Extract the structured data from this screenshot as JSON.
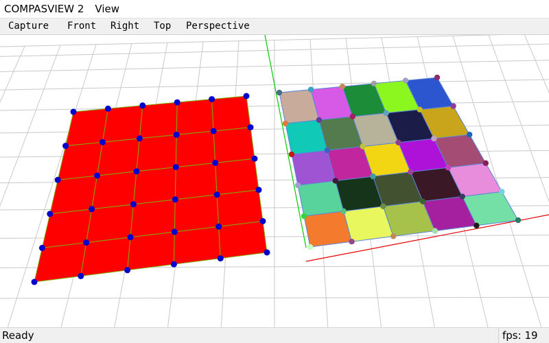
{
  "window": {
    "title": "COMPASVIEW 2",
    "menu": [
      "View"
    ]
  },
  "toolbar": {
    "buttons": [
      "Capture",
      "Front",
      "Right",
      "Top",
      "Perspective"
    ]
  },
  "status": {
    "message": "Ready",
    "fps_label": "fps:",
    "fps_value": "19"
  },
  "scene": {
    "grid_color": "#c9c9c9",
    "axis_x_color": "#e60000",
    "axis_y_color": "#00cc00",
    "left_mesh": {
      "face_color": "#ff0000",
      "edge_color": "#7fa800",
      "vertex_color": "#0000cc",
      "rows": 5,
      "cols": 5
    },
    "right_mesh": {
      "rows": 5,
      "cols": 5,
      "edge_color": "#5a86d6",
      "face_colors": [
        [
          "#f47a2e",
          "#e8f75e",
          "#a6c24a",
          "#a4209f",
          "#74e0a6"
        ],
        [
          "#58d39c",
          "#163419",
          "#425130",
          "#3a1826",
          "#e78ddb"
        ],
        [
          "#9f55d3",
          "#c1269f",
          "#f2d614",
          "#ae11d8",
          "#a54c75"
        ],
        [
          "#11c9b7",
          "#547b4e",
          "#b7b39b",
          "#1c1c48",
          "#c9a51c"
        ],
        [
          "#c9ab9b",
          "#d65ae6",
          "#1c8c39",
          "#8cf71e",
          "#2c56cf"
        ]
      ],
      "vertex_colors": [
        [
          "#c0ffc0",
          "#8d4a8c",
          "#c08a5a",
          "#a0e0b0",
          "#1c1c1c",
          "#2c7a6c"
        ],
        [
          "#3cd03c",
          "#58c084",
          "#6e8c48",
          "#3c6432",
          "#3c3c64",
          "#7ad0e0"
        ],
        [
          "#a0a0d0",
          "#3c1c3c",
          "#40a0a0",
          "#a040a0",
          "#c040c0",
          "#8a1c5a"
        ],
        [
          "#c01c1c",
          "#3c64c0",
          "#c0c040",
          "#8a408a",
          "#c0a0c0",
          "#1c64c0"
        ],
        [
          "#e07a3c",
          "#643ca0",
          "#a02060",
          "#60a0c0",
          "#c0c020",
          "#8a3ca0"
        ],
        [
          "#4a6a8a",
          "#3ca0c0",
          "#c08a5a",
          "#a0a0a0",
          "#a0a0c0",
          "#8a2c6c"
        ]
      ]
    }
  }
}
